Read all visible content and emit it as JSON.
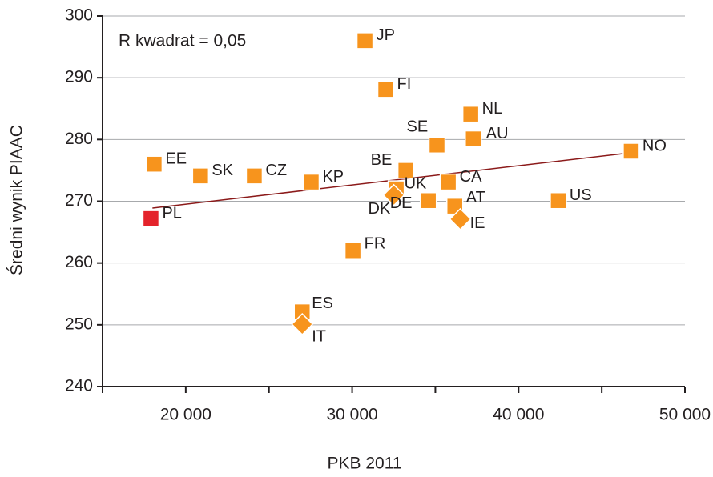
{
  "chart_data": {
    "type": "scatter",
    "x_label": "PKB 2011",
    "y_label": "Średni wynik PIAAC",
    "annotation": "R kwadrat = 0,05",
    "xlim": [
      15000,
      50000
    ],
    "ylim": [
      240,
      300
    ],
    "xticks": [
      {
        "value": 20000,
        "label": "20 000"
      },
      {
        "value": 30000,
        "label": "30 000"
      },
      {
        "value": 40000,
        "label": "40 000"
      },
      {
        "value": 50000,
        "label": "50 000"
      }
    ],
    "xminor_ticks": [
      15000,
      25000,
      35000,
      45000
    ],
    "yticks": [
      240,
      250,
      260,
      270,
      280,
      290,
      300
    ],
    "grid": true,
    "points": [
      {
        "label": "JP",
        "x": 30770,
        "y": 296.0,
        "marker": "square",
        "color": "#f7941d"
      },
      {
        "label": "FI",
        "x": 32020,
        "y": 288.1,
        "marker": "square",
        "color": "#f7941d"
      },
      {
        "label": "NL",
        "x": 37130,
        "y": 284.1,
        "marker": "square",
        "color": "#f7941d"
      },
      {
        "label": "AU",
        "x": 37280,
        "y": 280.1,
        "marker": "square",
        "color": "#f7941d"
      },
      {
        "label": "SE",
        "x": 35100,
        "y": 279.1,
        "marker": "square",
        "color": "#f7941d"
      },
      {
        "label": "NO",
        "x": 46770,
        "y": 278.1,
        "marker": "square",
        "color": "#f7941d"
      },
      {
        "label": "EE",
        "x": 18100,
        "y": 276.0,
        "marker": "square",
        "color": "#f7941d"
      },
      {
        "label": "SK",
        "x": 20890,
        "y": 274.1,
        "marker": "square",
        "color": "#f7941d"
      },
      {
        "label": "CZ",
        "x": 24120,
        "y": 274.1,
        "marker": "square",
        "color": "#f7941d"
      },
      {
        "label": "BE",
        "x": 33230,
        "y": 275.0,
        "marker": "square",
        "color": "#f7941d"
      },
      {
        "label": "KP",
        "x": 27540,
        "y": 273.1,
        "marker": "square",
        "color": "#f7941d"
      },
      {
        "label": "CA",
        "x": 35780,
        "y": 273.1,
        "marker": "square",
        "color": "#f7941d"
      },
      {
        "label": "UK",
        "x": 32650,
        "y": 272.0,
        "marker": "square",
        "color": "#f7941d"
      },
      {
        "label": "DK",
        "x": 32500,
        "y": 271.0,
        "marker": "diamond",
        "color": "#f7941d"
      },
      {
        "label": "DE",
        "x": 34580,
        "y": 270.1,
        "marker": "square",
        "color": "#f7941d"
      },
      {
        "label": "AT",
        "x": 36170,
        "y": 269.2,
        "marker": "square",
        "color": "#f7941d"
      },
      {
        "label": "IE",
        "x": 36500,
        "y": 267.1,
        "marker": "diamond",
        "color": "#f7941d"
      },
      {
        "label": "US",
        "x": 42390,
        "y": 270.1,
        "marker": "square",
        "color": "#f7941d"
      },
      {
        "label": "PL",
        "x": 17910,
        "y": 267.2,
        "marker": "square",
        "color": "#e4232b"
      },
      {
        "label": "FR",
        "x": 30050,
        "y": 262.0,
        "marker": "square",
        "color": "#f7941d"
      },
      {
        "label": "ES",
        "x": 27000,
        "y": 252.1,
        "marker": "square",
        "color": "#f7941d"
      },
      {
        "label": "IT",
        "x": 27000,
        "y": 250.1,
        "marker": "diamond",
        "color": "#f7941d"
      }
    ],
    "trendline": {
      "x": [
        18000,
        46900
      ],
      "y": [
        268.9,
        277.9
      ],
      "color": "#8b1a1a"
    }
  }
}
